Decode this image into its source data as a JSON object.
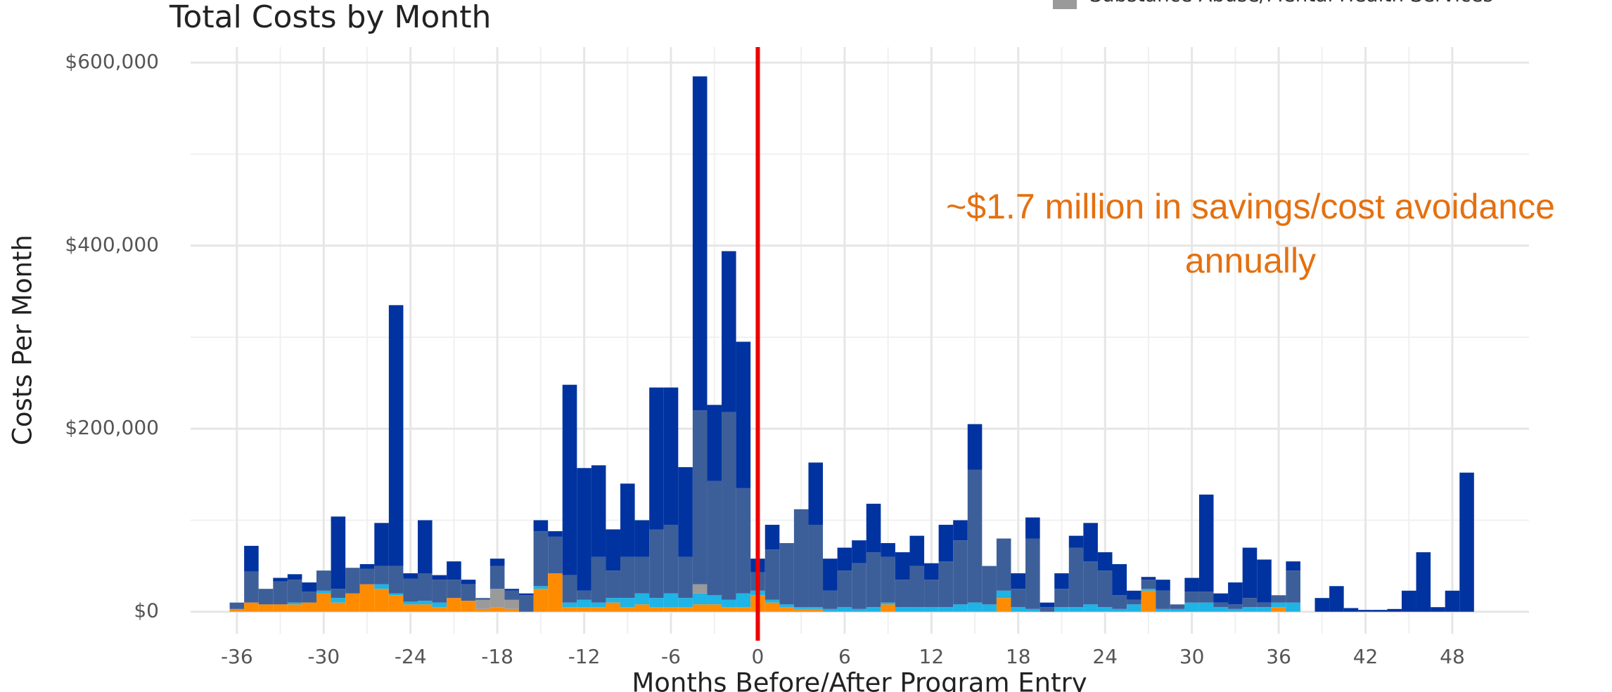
{
  "chart_data": {
    "type": "stacked_bar",
    "title": "Total Costs by Month",
    "x_label": "Months Before/After Program Entry",
    "y_label": "Costs Per Month",
    "x": [
      -36,
      -35,
      -34,
      -33,
      -32,
      -31,
      -30,
      -29,
      -28,
      -27,
      -26,
      -25,
      -24,
      -23,
      -22,
      -21,
      -20,
      -19,
      -18,
      -17,
      -16,
      -15,
      -14,
      -13,
      -12,
      -11,
      -10,
      -9,
      -8,
      -7,
      -6,
      -5,
      -4,
      -3,
      -2,
      -1,
      0,
      1,
      2,
      3,
      4,
      5,
      6,
      7,
      8,
      9,
      10,
      11,
      12,
      13,
      14,
      15,
      16,
      17,
      18,
      19,
      20,
      21,
      22,
      23,
      24,
      25,
      26,
      27,
      28,
      29,
      30,
      31,
      32,
      33,
      34,
      35,
      36,
      37,
      38,
      39,
      40,
      41,
      42,
      43,
      44,
      45,
      46,
      47,
      48,
      49
    ],
    "series": [
      {
        "color": "#ff8c00",
        "values": [
          3000,
          10000,
          8000,
          8000,
          8000,
          10000,
          20000,
          10000,
          20000,
          30000,
          25000,
          18000,
          8000,
          8000,
          5000,
          15000,
          12000,
          3000,
          5000,
          3000,
          0,
          25000,
          42000,
          5000,
          5000,
          5000,
          10000,
          5000,
          8000,
          5000,
          5000,
          5000,
          8000,
          8000,
          5000,
          5000,
          18000,
          10000,
          5000,
          3000,
          3000,
          0,
          0,
          0,
          0,
          8000,
          0,
          0,
          0,
          0,
          0,
          0,
          0,
          15000,
          0,
          0,
          0,
          0,
          0,
          0,
          0,
          0,
          0,
          23000,
          0,
          0,
          0,
          0,
          0,
          0,
          0,
          0,
          5000,
          0,
          0,
          0,
          0,
          0,
          0,
          0,
          0,
          0,
          0,
          0,
          0,
          0
        ]
      },
      {
        "color": "#1eb4e6",
        "values": [
          0,
          0,
          0,
          0,
          2000,
          0,
          3000,
          5000,
          0,
          0,
          5000,
          2000,
          3000,
          4000,
          5000,
          0,
          0,
          0,
          0,
          0,
          0,
          3000,
          0,
          5000,
          8000,
          5000,
          5000,
          10000,
          12000,
          10000,
          15000,
          10000,
          12000,
          10000,
          8000,
          15000,
          5000,
          3000,
          3000,
          2000,
          2000,
          3000,
          5000,
          3000,
          5000,
          2000,
          5000,
          5000,
          5000,
          5000,
          8000,
          10000,
          8000,
          8000,
          5000,
          3000,
          0,
          5000,
          5000,
          8000,
          5000,
          3000,
          8000,
          2000,
          3000,
          3000,
          10000,
          10000,
          5000,
          3000,
          5000,
          5000,
          5000,
          10000,
          0,
          0,
          0,
          0,
          0,
          0,
          0,
          0,
          0,
          0,
          0,
          0
        ]
      },
      {
        "name": "Substance Abuse/Mental Health Services",
        "color": "#9a9a9a",
        "values": [
          0,
          0,
          0,
          0,
          0,
          0,
          0,
          0,
          0,
          0,
          0,
          0,
          0,
          0,
          0,
          0,
          0,
          10000,
          20000,
          10000,
          0,
          0,
          0,
          0,
          0,
          0,
          0,
          0,
          0,
          0,
          0,
          0,
          10000,
          0,
          0,
          0,
          0,
          0,
          0,
          0,
          0,
          0,
          0,
          0,
          0,
          0,
          0,
          0,
          0,
          0,
          0,
          0,
          0,
          0,
          0,
          0,
          0,
          0,
          0,
          0,
          0,
          0,
          0,
          0,
          0,
          0,
          0,
          0,
          0,
          0,
          0,
          0,
          0,
          0,
          0,
          0,
          0,
          0,
          0,
          0,
          0,
          0,
          0,
          0,
          0,
          0
        ]
      },
      {
        "color": "#3d5f99",
        "values": [
          7000,
          34000,
          17000,
          25000,
          25000,
          12000,
          22000,
          10000,
          28000,
          17000,
          20000,
          30000,
          25000,
          30000,
          25000,
          20000,
          18000,
          2000,
          25000,
          10000,
          18000,
          60000,
          40000,
          30000,
          10000,
          50000,
          30000,
          45000,
          40000,
          75000,
          75000,
          45000,
          190000,
          125000,
          205000,
          115000,
          20000,
          55000,
          67000,
          107000,
          90000,
          20000,
          40000,
          50000,
          60000,
          50000,
          30000,
          45000,
          30000,
          50000,
          70000,
          145000,
          42000,
          57000,
          20000,
          77000,
          5000,
          20000,
          65000,
          47000,
          40000,
          15000,
          5000,
          10000,
          20000,
          5000,
          12000,
          12000,
          5000,
          5000,
          10000,
          5000,
          8000,
          35000,
          0,
          0,
          0,
          0,
          0,
          0,
          0,
          0,
          0,
          0,
          0,
          0
        ]
      },
      {
        "color": "#0033a0",
        "values": [
          0,
          28000,
          0,
          4000,
          6000,
          10000,
          0,
          79000,
          0,
          5000,
          47000,
          285000,
          6000,
          58000,
          5000,
          20000,
          5000,
          0,
          8000,
          2000,
          2000,
          12000,
          6000,
          208000,
          134000,
          100000,
          45000,
          80000,
          40000,
          155000,
          150000,
          98000,
          365000,
          83000,
          176000,
          160000,
          15000,
          27000,
          0,
          0,
          68000,
          35000,
          25000,
          25000,
          53000,
          15000,
          30000,
          33000,
          18000,
          40000,
          22000,
          50000,
          0,
          0,
          17000,
          23000,
          5000,
          17000,
          13000,
          42000,
          20000,
          34000,
          10000,
          3000,
          12000,
          0,
          15000,
          106000,
          10000,
          24000,
          55000,
          47000,
          0,
          10000,
          0,
          15000,
          28000,
          4000,
          2000,
          2000,
          3000,
          23000,
          65000,
          5000,
          23000,
          152000
        ]
      }
    ],
    "xlim": [
      -39.2,
      53.3
    ],
    "xticks": [
      -36,
      -30,
      -24,
      -18,
      -12,
      -6,
      0,
      6,
      12,
      18,
      24,
      30,
      36,
      42,
      48
    ],
    "ylim": [
      -24000,
      617000
    ],
    "yticks": [
      {
        "value": 0,
        "label": "$0"
      },
      {
        "value": 200000,
        "label": "$200,000"
      },
      {
        "value": 400000,
        "label": "$400,000"
      },
      {
        "value": 600000,
        "label": "$600,000"
      }
    ],
    "grid": true,
    "vline": {
      "x": 0,
      "color": "#ee0000"
    },
    "annotation": {
      "lines": [
        "~$1.7 million in savings/cost avoidance",
        "annually"
      ],
      "color": "#e5700f"
    }
  }
}
